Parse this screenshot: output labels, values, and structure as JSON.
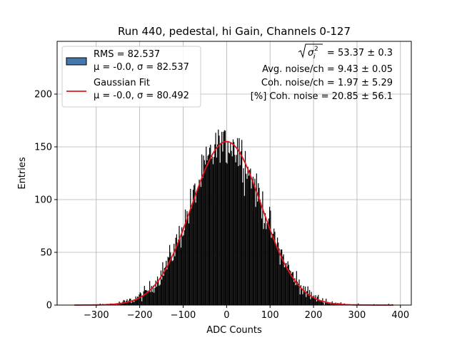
{
  "chart_data": {
    "type": "bar",
    "title": "Run 440, pedestal, hi Gain, Channels 0-127",
    "xlabel": "ADC Counts",
    "ylabel": "Entries",
    "xlim": [
      -390,
      425
    ],
    "ylim": [
      0,
      250
    ],
    "x_ticks": [
      -300,
      -200,
      -100,
      0,
      100,
      200,
      300,
      400
    ],
    "y_ticks": [
      0,
      50,
      100,
      150,
      200
    ],
    "x_tick_labels": [
      "−300",
      "−200",
      "−100",
      "0",
      "100",
      "200",
      "300",
      "400"
    ],
    "y_tick_labels": [
      "0",
      "50",
      "100",
      "150",
      "200"
    ],
    "grid": true,
    "legend_placement": "top-left",
    "histogram": {
      "name": "RMS = 82.537",
      "stats_line": "μ = -0.0, σ = 82.537",
      "color": "#000000",
      "legend_color": "#4477aa",
      "x_range": [
        -350,
        385
      ],
      "bin_width": 2,
      "sigma": 82.537,
      "peak": 168
    },
    "fit": {
      "name": "Gaussian Fit",
      "stats_line": "μ = -0.0, σ = 80.492",
      "color": "#e0141a",
      "mu": 0.0,
      "sigma": 80.492,
      "amplitude": 155,
      "x_range": [
        -350,
        385
      ]
    },
    "annotations": {
      "sqrt_label": "σ",
      "sqrt_sub": "i",
      "sqrt_sup": "2",
      "sqrt_value": " = 53.37 ± 0.3",
      "avg_noise": "Avg. noise/ch = 9.43 ± 0.05",
      "coh_noise": "Coh. noise/ch = 1.97 ± 5.29",
      "coh_pct": "[%] Coh. noise = 20.85 ± 56.1"
    }
  }
}
